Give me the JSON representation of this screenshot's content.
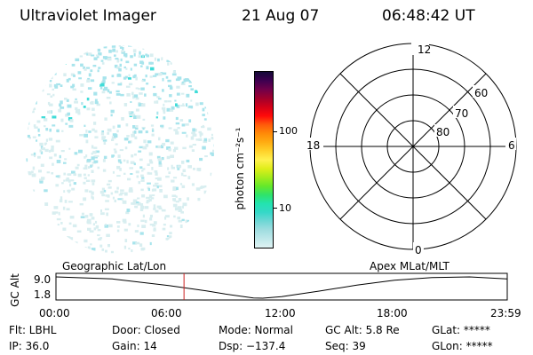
{
  "header": {
    "title": "Ultraviolet Imager",
    "date": "21 Aug 07",
    "time": "06:48:42 UT"
  },
  "image_panel": {
    "description_colors": [
      "#d8eef0",
      "#a8e4ec",
      "#40dcd8"
    ]
  },
  "colorbar": {
    "unit_label": "photon cm⁻²s⁻¹",
    "ticks": [
      {
        "label": "100",
        "value": 100
      },
      {
        "label": "10",
        "value": 10
      }
    ],
    "colors": [
      "#dff3f3",
      "#bfe8ea",
      "#a0dde0",
      "#6fd7d5",
      "#35d8c8",
      "#23e3b0",
      "#2fe36b",
      "#65e82a",
      "#a4ec1c",
      "#e0ee1a",
      "#fff14f",
      "#ffd12a",
      "#ffac12",
      "#ff8a08",
      "#ff5a0a",
      "#ff0a0a",
      "#d40018",
      "#a0002c",
      "#70004a",
      "#3e0050",
      "#140a38"
    ]
  },
  "polar_plot": {
    "mlt_labels": {
      "top": "12",
      "left": "18",
      "right": "6",
      "bottom": "0"
    },
    "lat_labels": [
      "60",
      "70",
      "80"
    ]
  },
  "timeline": {
    "axis_label": "GC Alt",
    "y_max": "9.0",
    "y_min": "1.8",
    "left_caption": "Geographic Lat/Lon",
    "right_caption": "Apex MLat/MLT",
    "time_ticks": [
      "00:00",
      "06:00",
      "12:00",
      "18:00",
      "23:59"
    ],
    "current_time_hours": 6.81,
    "marker_color": "#cc2222",
    "altitude_curve": {
      "x_hours": [
        0,
        3,
        6,
        8,
        9,
        10.5,
        11,
        12,
        14,
        16,
        18,
        20,
        22,
        23.98
      ],
      "y_re": [
        9.0,
        8.3,
        6.1,
        4.3,
        3.2,
        1.9,
        1.8,
        2.3,
        4.2,
        6.2,
        7.9,
        8.8,
        9.0,
        8.3
      ]
    }
  },
  "status": {
    "flt": "Flt: LBHL",
    "door": "Door: Closed",
    "mode": "Mode: Normal",
    "gc_alt": "GC Alt: 5.8 Re",
    "glat": "GLat: *****",
    "ip": "IP: 36.0",
    "gain": "Gain: 14",
    "dsp": "Dsp: −137.4",
    "seq": "Seq: 39",
    "glon": "GLon: *****"
  }
}
